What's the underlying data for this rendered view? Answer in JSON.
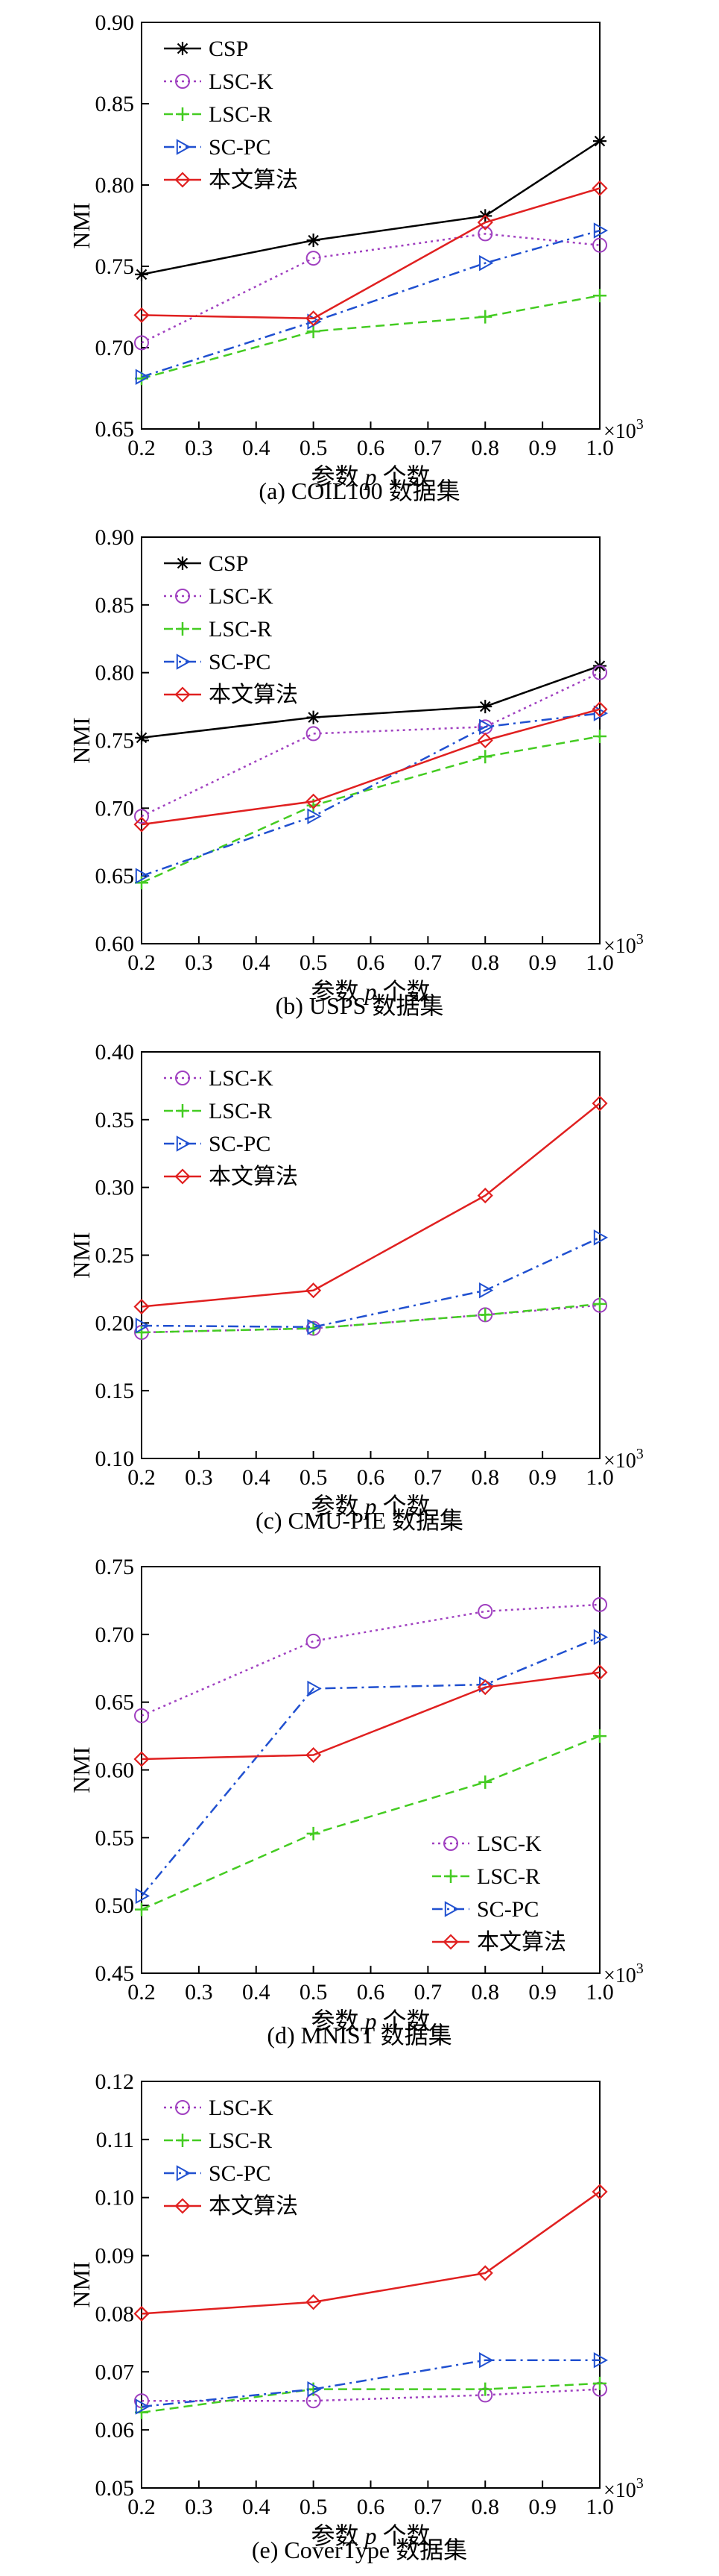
{
  "chart_data": [
    {
      "type": "line",
      "caption": "(a) COIL100 数据集",
      "ylabel": "NMI",
      "xlabel_prefix": "参数 ",
      "xlabel_var": "p",
      "xlabel_suffix": " 个数",
      "x_multiplier_base": "×10",
      "x_multiplier_exp": "3",
      "ylim": [
        0.65,
        0.9
      ],
      "yticks": [
        "0.65",
        "0.70",
        "0.75",
        "0.80",
        "0.85",
        "0.90"
      ],
      "xlim": [
        0.2,
        1.0
      ],
      "xticks": [
        "0.2",
        "0.3",
        "0.4",
        "0.5",
        "0.6",
        "0.7",
        "0.8",
        "0.9",
        "1.0"
      ],
      "legend_position": "top-left",
      "grid": false,
      "x": [
        0.2,
        0.5,
        0.8,
        1.0
      ],
      "series": [
        {
          "name": "CSP",
          "values": [
            0.745,
            0.766,
            0.781,
            0.827
          ],
          "color": "#000000",
          "marker": "star",
          "dash": "solid"
        },
        {
          "name": "LSC-K",
          "values": [
            0.703,
            0.755,
            0.77,
            0.763
          ],
          "color": "#a040c0",
          "marker": "circle",
          "dash": "dotted"
        },
        {
          "name": "LSC-R",
          "values": [
            0.681,
            0.71,
            0.719,
            0.732
          ],
          "color": "#44cc22",
          "marker": "plus",
          "dash": "dashed"
        },
        {
          "name": "SC-PC",
          "values": [
            0.682,
            0.716,
            0.752,
            0.772
          ],
          "color": "#2050d0",
          "marker": "triangle",
          "dash": "dashdot"
        },
        {
          "name": "本文算法",
          "values": [
            0.72,
            0.718,
            0.777,
            0.798
          ],
          "color": "#e02020",
          "marker": "diamond",
          "dash": "solid"
        }
      ]
    },
    {
      "type": "line",
      "caption": "(b) USPS 数据集",
      "ylabel": "NMI",
      "xlabel_prefix": "参数 ",
      "xlabel_var": "p",
      "xlabel_suffix": " 个数",
      "x_multiplier_base": "×10",
      "x_multiplier_exp": "3",
      "ylim": [
        0.6,
        0.9
      ],
      "yticks": [
        "0.60",
        "0.65",
        "0.70",
        "0.75",
        "0.80",
        "0.85",
        "0.90"
      ],
      "xlim": [
        0.2,
        1.0
      ],
      "xticks": [
        "0.2",
        "0.3",
        "0.4",
        "0.5",
        "0.6",
        "0.7",
        "0.8",
        "0.9",
        "1.0"
      ],
      "legend_position": "top-left",
      "grid": false,
      "x": [
        0.2,
        0.5,
        0.8,
        1.0
      ],
      "series": [
        {
          "name": "CSP",
          "values": [
            0.752,
            0.767,
            0.775,
            0.805
          ],
          "color": "#000000",
          "marker": "star",
          "dash": "solid"
        },
        {
          "name": "LSC-K",
          "values": [
            0.694,
            0.755,
            0.76,
            0.8
          ],
          "color": "#a040c0",
          "marker": "circle",
          "dash": "dotted"
        },
        {
          "name": "LSC-R",
          "values": [
            0.645,
            0.702,
            0.738,
            0.753
          ],
          "color": "#44cc22",
          "marker": "plus",
          "dash": "dashed"
        },
        {
          "name": "SC-PC",
          "values": [
            0.65,
            0.694,
            0.76,
            0.77
          ],
          "color": "#2050d0",
          "marker": "triangle",
          "dash": "dashdot"
        },
        {
          "name": "本文算法",
          "values": [
            0.688,
            0.705,
            0.75,
            0.773
          ],
          "color": "#e02020",
          "marker": "diamond",
          "dash": "solid"
        }
      ]
    },
    {
      "type": "line",
      "caption": "(c) CMU-PIE 数据集",
      "ylabel": "NMI",
      "xlabel_prefix": "参数 ",
      "xlabel_var": "p",
      "xlabel_suffix": " 个数",
      "x_multiplier_base": "×10",
      "x_multiplier_exp": "3",
      "ylim": [
        0.1,
        0.4
      ],
      "yticks": [
        "0.10",
        "0.15",
        "0.20",
        "0.25",
        "0.30",
        "0.35",
        "0.40"
      ],
      "xlim": [
        0.2,
        1.0
      ],
      "xticks": [
        "0.2",
        "0.3",
        "0.4",
        "0.5",
        "0.6",
        "0.7",
        "0.8",
        "0.9",
        "1.0"
      ],
      "legend_position": "top-left",
      "grid": false,
      "x": [
        0.2,
        0.5,
        0.8,
        1.0
      ],
      "series": [
        {
          "name": "LSC-K",
          "values": [
            0.193,
            0.196,
            0.206,
            0.213
          ],
          "color": "#a040c0",
          "marker": "circle",
          "dash": "dotted"
        },
        {
          "name": "LSC-R",
          "values": [
            0.193,
            0.196,
            0.206,
            0.214
          ],
          "color": "#44cc22",
          "marker": "plus",
          "dash": "dashed"
        },
        {
          "name": "SC-PC",
          "values": [
            0.198,
            0.197,
            0.224,
            0.263
          ],
          "color": "#2050d0",
          "marker": "triangle",
          "dash": "dashdot"
        },
        {
          "name": "本文算法",
          "values": [
            0.212,
            0.224,
            0.294,
            0.362
          ],
          "color": "#e02020",
          "marker": "diamond",
          "dash": "solid"
        }
      ]
    },
    {
      "type": "line",
      "caption": "(d) MNIST 数据集",
      "ylabel": "NMI",
      "xlabel_prefix": "参数 ",
      "xlabel_var": "p",
      "xlabel_suffix": " 个数",
      "x_multiplier_base": "×10",
      "x_multiplier_exp": "3",
      "ylim": [
        0.45,
        0.75
      ],
      "yticks": [
        "0.45",
        "0.50",
        "0.55",
        "0.60",
        "0.65",
        "0.70",
        "0.75"
      ],
      "xlim": [
        0.2,
        1.0
      ],
      "xticks": [
        "0.2",
        "0.3",
        "0.4",
        "0.5",
        "0.6",
        "0.7",
        "0.8",
        "0.9",
        "1.0"
      ],
      "legend_position": "bottom-right",
      "grid": false,
      "x": [
        0.2,
        0.5,
        0.8,
        1.0
      ],
      "series": [
        {
          "name": "LSC-K",
          "values": [
            0.64,
            0.695,
            0.717,
            0.722
          ],
          "color": "#a040c0",
          "marker": "circle",
          "dash": "dotted"
        },
        {
          "name": "LSC-R",
          "values": [
            0.497,
            0.553,
            0.591,
            0.625
          ],
          "color": "#44cc22",
          "marker": "plus",
          "dash": "dashed"
        },
        {
          "name": "SC-PC",
          "values": [
            0.507,
            0.66,
            0.663,
            0.698
          ],
          "color": "#2050d0",
          "marker": "triangle",
          "dash": "dashdot"
        },
        {
          "name": "本文算法",
          "values": [
            0.608,
            0.611,
            0.661,
            0.672
          ],
          "color": "#e02020",
          "marker": "diamond",
          "dash": "solid"
        }
      ]
    },
    {
      "type": "line",
      "caption": "(e) CoverType 数据集",
      "ylabel": "NMI",
      "xlabel_prefix": "参数 ",
      "xlabel_var": "p",
      "xlabel_suffix": " 个数",
      "x_multiplier_base": "×10",
      "x_multiplier_exp": "3",
      "ylim": [
        0.05,
        0.12
      ],
      "yticks": [
        "0.05",
        "0.06",
        "0.07",
        "0.08",
        "0.09",
        "0.10",
        "0.11",
        "0.12"
      ],
      "xlim": [
        0.2,
        1.0
      ],
      "xticks": [
        "0.2",
        "0.3",
        "0.4",
        "0.5",
        "0.6",
        "0.7",
        "0.8",
        "0.9",
        "1.0"
      ],
      "legend_position": "top-left",
      "grid": false,
      "x": [
        0.2,
        0.5,
        0.8,
        1.0
      ],
      "series": [
        {
          "name": "LSC-K",
          "values": [
            0.065,
            0.065,
            0.066,
            0.067
          ],
          "color": "#a040c0",
          "marker": "circle",
          "dash": "dotted"
        },
        {
          "name": "LSC-R",
          "values": [
            0.063,
            0.067,
            0.067,
            0.068
          ],
          "color": "#44cc22",
          "marker": "plus",
          "dash": "dashed"
        },
        {
          "name": "SC-PC",
          "values": [
            0.064,
            0.067,
            0.072,
            0.072
          ],
          "color": "#2050d0",
          "marker": "triangle",
          "dash": "dashdot"
        },
        {
          "name": "本文算法",
          "values": [
            0.08,
            0.082,
            0.087,
            0.101
          ],
          "color": "#e02020",
          "marker": "diamond",
          "dash": "solid"
        }
      ]
    }
  ]
}
